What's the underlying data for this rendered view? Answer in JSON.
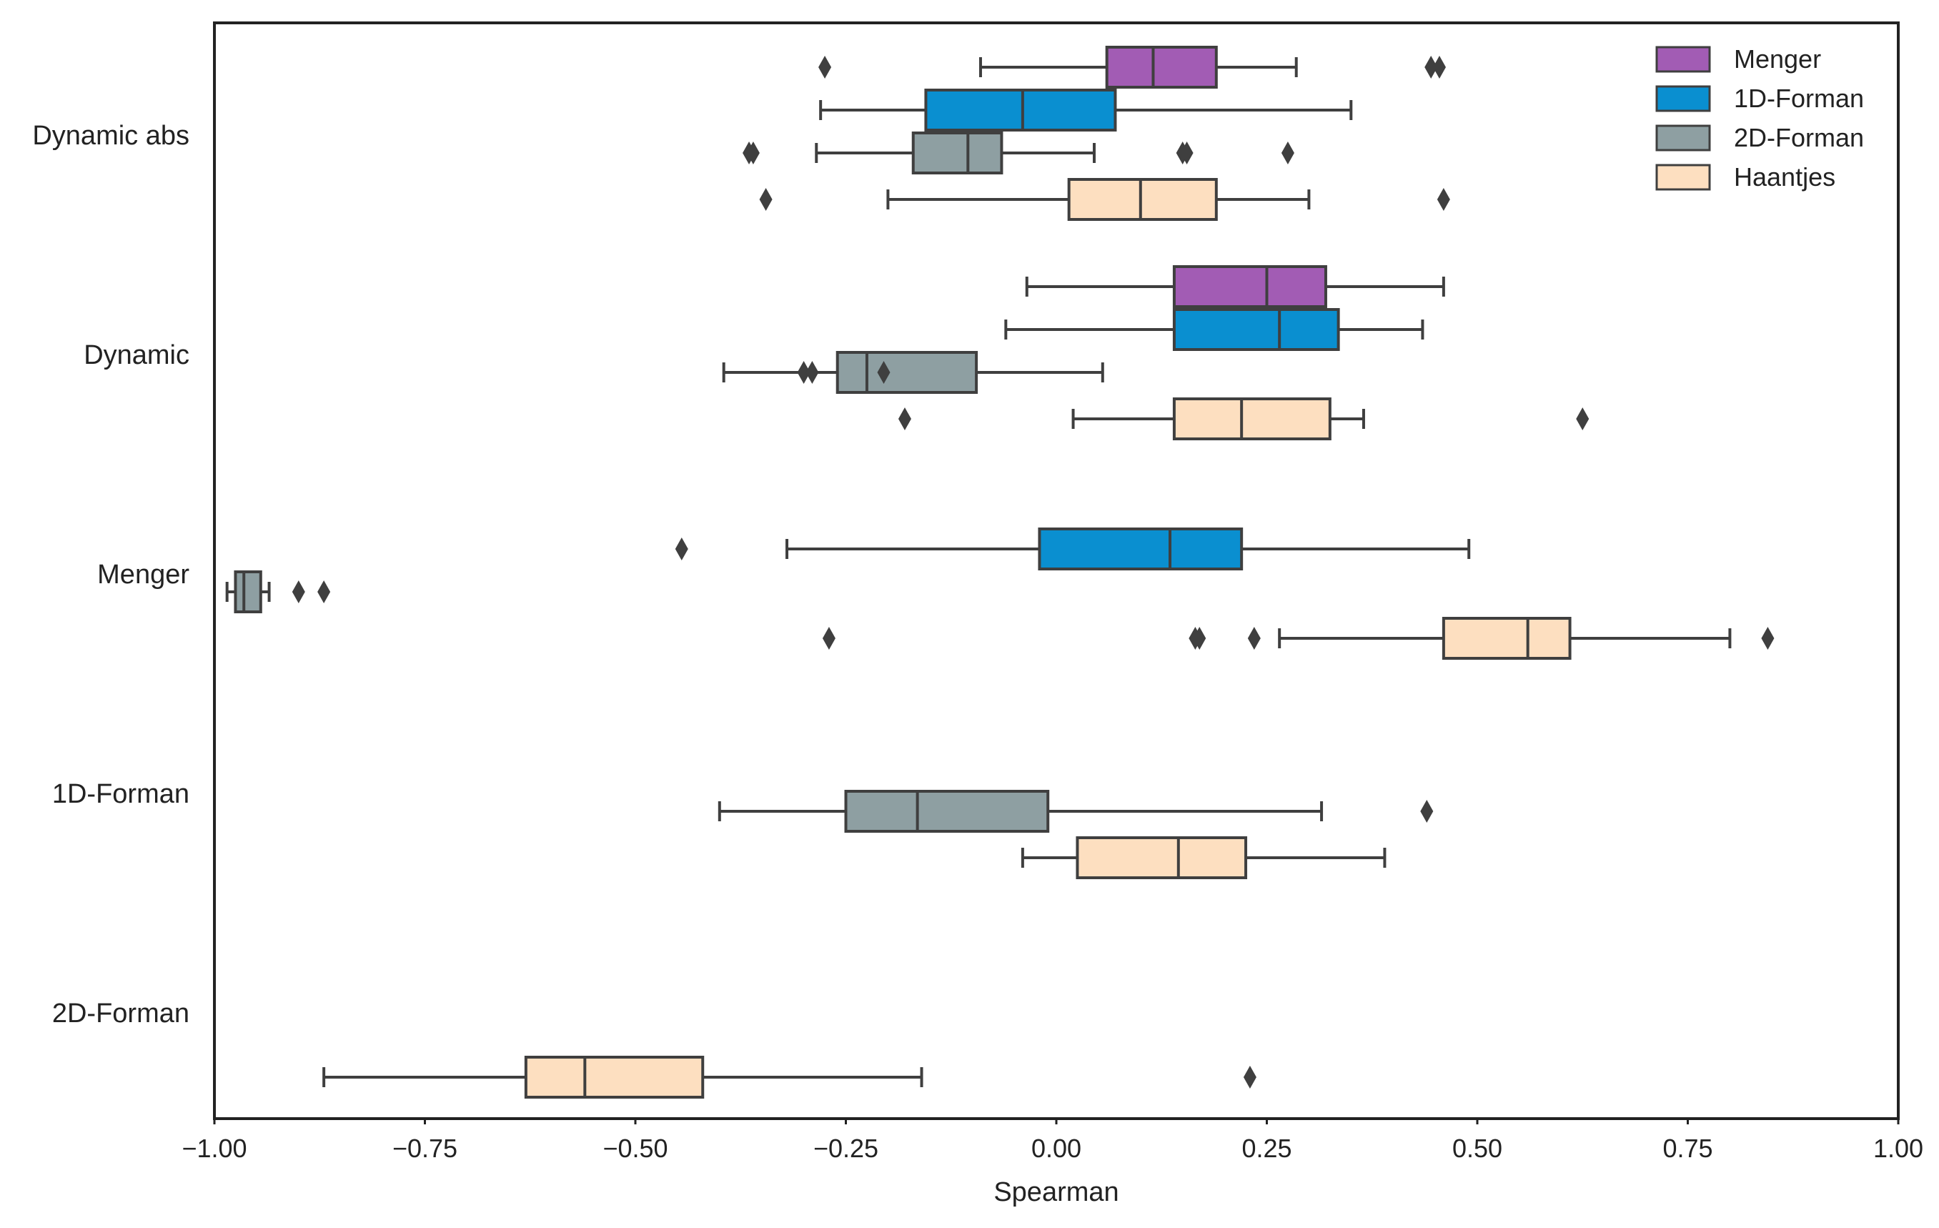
{
  "chart_data": {
    "type": "boxplot",
    "orientation": "horizontal",
    "xlabel": "Spearman",
    "ylabel": "",
    "xlim": [
      -1.0,
      1.0
    ],
    "x_ticks": [
      "−1.00",
      "−0.75",
      "−0.50",
      "−0.25",
      "0.00",
      "0.25",
      "0.50",
      "0.75",
      "1.00"
    ],
    "x_tick_values": [
      -1.0,
      -0.75,
      -0.5,
      -0.25,
      0.0,
      0.25,
      0.5,
      0.75,
      1.0
    ],
    "grid": false,
    "legend_position": "top-right",
    "categories": [
      "Dynamic abs",
      "Dynamic",
      "Menger",
      "1D-Forman",
      "2D-Forman"
    ],
    "series": [
      {
        "name": "Menger",
        "color": "#a25cb4"
      },
      {
        "name": "1D-Forman",
        "color": "#0a8fd0"
      },
      {
        "name": "2D-Forman",
        "color": "#8e9fa2"
      },
      {
        "name": "Haantjes",
        "color": "#fddfc0"
      }
    ],
    "boxes": [
      {
        "category": "Dynamic abs",
        "series": "Menger",
        "whisker_low": -0.09,
        "q1": 0.06,
        "median": 0.115,
        "q3": 0.19,
        "whisker_high": 0.285,
        "outliers": [
          -0.275,
          0.445,
          0.455
        ]
      },
      {
        "category": "Dynamic abs",
        "series": "1D-Forman",
        "whisker_low": -0.28,
        "q1": -0.155,
        "median": -0.04,
        "q3": 0.07,
        "whisker_high": 0.35,
        "outliers": []
      },
      {
        "category": "Dynamic abs",
        "series": "2D-Forman",
        "whisker_low": -0.285,
        "q1": -0.17,
        "median": -0.105,
        "q3": -0.065,
        "whisker_high": 0.045,
        "outliers": [
          -0.365,
          -0.36,
          0.15,
          0.155,
          0.275
        ]
      },
      {
        "category": "Dynamic abs",
        "series": "Haantjes",
        "whisker_low": -0.2,
        "q1": 0.015,
        "median": 0.1,
        "q3": 0.19,
        "whisker_high": 0.3,
        "outliers": [
          -0.345,
          0.46
        ]
      },
      {
        "category": "Dynamic",
        "series": "Menger",
        "whisker_low": -0.035,
        "q1": 0.14,
        "median": 0.25,
        "q3": 0.32,
        "whisker_high": 0.46,
        "outliers": []
      },
      {
        "category": "Dynamic",
        "series": "1D-Forman",
        "whisker_low": -0.06,
        "q1": 0.14,
        "median": 0.265,
        "q3": 0.335,
        "whisker_high": 0.435,
        "outliers": []
      },
      {
        "category": "Dynamic",
        "series": "2D-Forman",
        "whisker_low": -0.395,
        "q1": -0.26,
        "median": -0.225,
        "q3": -0.095,
        "whisker_high": 0.055,
        "outliers": [
          -0.3,
          -0.29,
          -0.205
        ]
      },
      {
        "category": "Dynamic",
        "series": "Haantjes",
        "whisker_low": 0.02,
        "q1": 0.14,
        "median": 0.22,
        "q3": 0.325,
        "whisker_high": 0.365,
        "outliers": [
          -0.18,
          0.625
        ]
      },
      {
        "category": "Menger",
        "series": "1D-Forman",
        "whisker_low": -0.32,
        "q1": -0.02,
        "median": 0.135,
        "q3": 0.22,
        "whisker_high": 0.49,
        "outliers": [
          -0.445
        ]
      },
      {
        "category": "Menger",
        "series": "2D-Forman",
        "whisker_low": -0.985,
        "q1": -0.975,
        "median": -0.965,
        "q3": -0.945,
        "whisker_high": -0.935,
        "outliers": [
          -0.9,
          -0.87
        ]
      },
      {
        "category": "Menger",
        "series": "Haantjes",
        "whisker_low": 0.265,
        "q1": 0.46,
        "median": 0.56,
        "q3": 0.61,
        "whisker_high": 0.8,
        "outliers": [
          -0.27,
          0.165,
          0.17,
          0.235,
          0.845
        ]
      },
      {
        "category": "1D-Forman",
        "series": "2D-Forman",
        "whisker_low": -0.4,
        "q1": -0.25,
        "median": -0.165,
        "q3": -0.01,
        "whisker_high": 0.315,
        "outliers": [
          0.44
        ]
      },
      {
        "category": "1D-Forman",
        "series": "Haantjes",
        "whisker_low": -0.04,
        "q1": 0.025,
        "median": 0.145,
        "q3": 0.225,
        "whisker_high": 0.39,
        "outliers": []
      },
      {
        "category": "2D-Forman",
        "series": "Haantjes",
        "whisker_low": -0.87,
        "q1": -0.63,
        "median": -0.56,
        "q3": -0.42,
        "whisker_high": -0.16,
        "outliers": [
          0.23
        ]
      }
    ]
  }
}
